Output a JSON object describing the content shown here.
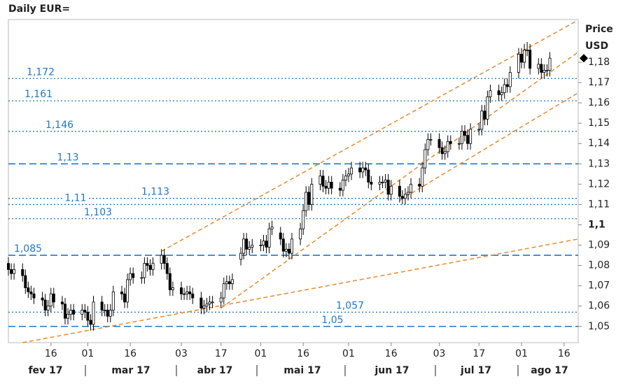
{
  "chart_data": {
    "type": "candlestick",
    "title": "Daily EUR=",
    "y_label_lines": [
      "Price",
      "USD"
    ],
    "x": [
      "2017-02-01",
      "2017-02-02",
      "2017-02-03",
      "2017-02-06",
      "2017-02-07",
      "2017-02-08",
      "2017-02-09",
      "2017-02-10",
      "2017-02-13",
      "2017-02-14",
      "2017-02-15",
      "2017-02-16",
      "2017-02-17",
      "2017-02-20",
      "2017-02-21",
      "2017-02-22",
      "2017-02-23",
      "2017-02-24",
      "2017-02-27",
      "2017-02-28",
      "2017-03-01",
      "2017-03-02",
      "2017-03-03",
      "2017-03-06",
      "2017-03-07",
      "2017-03-08",
      "2017-03-09",
      "2017-03-10",
      "2017-03-13",
      "2017-03-14",
      "2017-03-15",
      "2017-03-16",
      "2017-03-17",
      "2017-03-20",
      "2017-03-21",
      "2017-03-22",
      "2017-03-23",
      "2017-03-24",
      "2017-03-27",
      "2017-03-28",
      "2017-03-29",
      "2017-03-30",
      "2017-03-31",
      "2017-04-03",
      "2017-04-04",
      "2017-04-05",
      "2017-04-06",
      "2017-04-07",
      "2017-04-10",
      "2017-04-11",
      "2017-04-12",
      "2017-04-13",
      "2017-04-14",
      "2017-04-17",
      "2017-04-18",
      "2017-04-19",
      "2017-04-20",
      "2017-04-21",
      "2017-04-24",
      "2017-04-25",
      "2017-04-26",
      "2017-04-27",
      "2017-04-28",
      "2017-05-01",
      "2017-05-02",
      "2017-05-03",
      "2017-05-04",
      "2017-05-05",
      "2017-05-08",
      "2017-05-09",
      "2017-05-10",
      "2017-05-11",
      "2017-05-12",
      "2017-05-15",
      "2017-05-16",
      "2017-05-17",
      "2017-05-18",
      "2017-05-19",
      "2017-05-22",
      "2017-05-23",
      "2017-05-24",
      "2017-05-25",
      "2017-05-26",
      "2017-05-29",
      "2017-05-30",
      "2017-05-31",
      "2017-06-01",
      "2017-06-02",
      "2017-06-05",
      "2017-06-06",
      "2017-06-07",
      "2017-06-08",
      "2017-06-09",
      "2017-06-12",
      "2017-06-13",
      "2017-06-14",
      "2017-06-15",
      "2017-06-16",
      "2017-06-19",
      "2017-06-20",
      "2017-06-21",
      "2017-06-22",
      "2017-06-23",
      "2017-06-26",
      "2017-06-27",
      "2017-06-28",
      "2017-06-29",
      "2017-06-30",
      "2017-07-03",
      "2017-07-04",
      "2017-07-05",
      "2017-07-06",
      "2017-07-07",
      "2017-07-10",
      "2017-07-11",
      "2017-07-12",
      "2017-07-13",
      "2017-07-14",
      "2017-07-17",
      "2017-07-18",
      "2017-07-19",
      "2017-07-20",
      "2017-07-21",
      "2017-07-24",
      "2017-07-25",
      "2017-07-26",
      "2017-07-27",
      "2017-07-28",
      "2017-07-31",
      "2017-08-01",
      "2017-08-02",
      "2017-08-03",
      "2017-08-04",
      "2017-08-07",
      "2017-08-08",
      "2017-08-09",
      "2017-08-10",
      "2017-08-11"
    ],
    "open": [
      1.081,
      1.078,
      1.076,
      1.078,
      1.075,
      1.069,
      1.067,
      1.066,
      1.064,
      1.063,
      1.058,
      1.06,
      1.066,
      1.062,
      1.061,
      1.054,
      1.056,
      1.058,
      1.056,
      1.058,
      1.057,
      1.053,
      1.051,
      1.062,
      1.058,
      1.058,
      1.055,
      1.058,
      1.067,
      1.066,
      1.062,
      1.073,
      1.076,
      1.074,
      1.074,
      1.081,
      1.08,
      1.078,
      1.081,
      1.085,
      1.081,
      1.076,
      1.068,
      1.069,
      1.066,
      1.066,
      1.067,
      1.066,
      1.064,
      1.059,
      1.06,
      1.061,
      1.062,
      1.062,
      1.064,
      1.071,
      1.072,
      1.071,
      1.083,
      1.086,
      1.093,
      1.088,
      1.089,
      1.09,
      1.09,
      1.092,
      1.089,
      1.098,
      1.096,
      1.093,
      1.087,
      1.088,
      1.086,
      1.093,
      1.098,
      1.107,
      1.116,
      1.11,
      1.12,
      1.124,
      1.119,
      1.118,
      1.121,
      1.118,
      1.117,
      1.122,
      1.124,
      1.125,
      1.128,
      1.126,
      1.128,
      1.127,
      1.121,
      1.12,
      1.121,
      1.121,
      1.122,
      1.115,
      1.119,
      1.114,
      1.113,
      1.115,
      1.116,
      1.12,
      1.119,
      1.128,
      1.137,
      1.142,
      1.142,
      1.138,
      1.135,
      1.136,
      1.141,
      1.14,
      1.14,
      1.146,
      1.144,
      1.14,
      1.147,
      1.147,
      1.156,
      1.152,
      1.163,
      1.166,
      1.164,
      1.165,
      1.169,
      1.168,
      1.175,
      1.184,
      1.18,
      1.186,
      1.186,
      1.177,
      1.179,
      1.175,
      1.176,
      1.176
    ],
    "high": [
      1.084,
      1.081,
      1.081,
      1.081,
      1.078,
      1.072,
      1.07,
      1.069,
      1.067,
      1.066,
      1.063,
      1.069,
      1.069,
      1.065,
      1.064,
      1.059,
      1.061,
      1.061,
      1.061,
      1.061,
      1.06,
      1.056,
      1.065,
      1.065,
      1.061,
      1.061,
      1.061,
      1.07,
      1.07,
      1.069,
      1.076,
      1.079,
      1.079,
      1.077,
      1.084,
      1.084,
      1.083,
      1.084,
      1.088,
      1.088,
      1.084,
      1.079,
      1.072,
      1.072,
      1.069,
      1.07,
      1.07,
      1.069,
      1.067,
      1.063,
      1.064,
      1.065,
      1.065,
      1.067,
      1.074,
      1.075,
      1.075,
      1.076,
      1.089,
      1.096,
      1.096,
      1.092,
      1.093,
      1.093,
      1.095,
      1.095,
      1.101,
      1.102,
      1.099,
      1.096,
      1.091,
      1.091,
      1.096,
      1.101,
      1.11,
      1.119,
      1.119,
      1.123,
      1.127,
      1.127,
      1.122,
      1.124,
      1.124,
      1.121,
      1.125,
      1.127,
      1.128,
      1.131,
      1.131,
      1.131,
      1.131,
      1.13,
      1.124,
      1.124,
      1.124,
      1.125,
      1.125,
      1.122,
      1.122,
      1.117,
      1.118,
      1.119,
      1.123,
      1.123,
      1.131,
      1.14,
      1.145,
      1.145,
      1.145,
      1.141,
      1.139,
      1.144,
      1.144,
      1.143,
      1.149,
      1.149,
      1.147,
      1.15,
      1.15,
      1.159,
      1.159,
      1.166,
      1.169,
      1.169,
      1.168,
      1.172,
      1.172,
      1.178,
      1.187,
      1.187,
      1.189,
      1.19,
      1.189,
      1.182,
      1.182,
      1.179,
      1.179,
      1.185
    ],
    "low": [
      1.075,
      1.073,
      1.073,
      1.072,
      1.066,
      1.064,
      1.063,
      1.061,
      1.06,
      1.055,
      1.055,
      1.057,
      1.059,
      1.058,
      1.051,
      1.051,
      1.053,
      1.053,
      1.053,
      1.054,
      1.05,
      1.048,
      1.048,
      1.055,
      1.055,
      1.052,
      1.052,
      1.055,
      1.063,
      1.059,
      1.059,
      1.07,
      1.071,
      1.071,
      1.071,
      1.077,
      1.075,
      1.075,
      1.078,
      1.078,
      1.073,
      1.065,
      1.065,
      1.063,
      1.063,
      1.063,
      1.063,
      1.061,
      1.056,
      1.056,
      1.057,
      1.058,
      1.059,
      1.059,
      1.061,
      1.068,
      1.068,
      1.068,
      1.08,
      1.083,
      1.085,
      1.085,
      1.086,
      1.087,
      1.087,
      1.086,
      1.086,
      1.095,
      1.09,
      1.084,
      1.084,
      1.083,
      1.083,
      1.09,
      1.095,
      1.104,
      1.107,
      1.107,
      1.117,
      1.116,
      1.115,
      1.115,
      1.115,
      1.114,
      1.114,
      1.119,
      1.121,
      1.122,
      1.123,
      1.123,
      1.124,
      1.118,
      1.117,
      1.117,
      1.118,
      1.118,
      1.112,
      1.112,
      1.111,
      1.11,
      1.11,
      1.112,
      1.113,
      1.116,
      1.116,
      1.125,
      1.134,
      1.139,
      1.135,
      1.132,
      1.132,
      1.133,
      1.137,
      1.137,
      1.137,
      1.141,
      1.137,
      1.137,
      1.144,
      1.144,
      1.149,
      1.149,
      1.16,
      1.161,
      1.161,
      1.162,
      1.165,
      1.165,
      1.172,
      1.177,
      1.177,
      1.183,
      1.174,
      1.174,
      1.172,
      1.172,
      1.173,
      1.173
    ],
    "close": [
      1.078,
      1.076,
      1.078,
      1.075,
      1.069,
      1.067,
      1.066,
      1.064,
      1.063,
      1.058,
      1.06,
      1.066,
      1.062,
      1.061,
      1.054,
      1.056,
      1.058,
      1.056,
      1.058,
      1.057,
      1.053,
      1.051,
      1.062,
      1.058,
      1.058,
      1.055,
      1.058,
      1.067,
      1.066,
      1.062,
      1.073,
      1.076,
      1.074,
      1.074,
      1.081,
      1.08,
      1.078,
      1.081,
      1.085,
      1.081,
      1.076,
      1.068,
      1.069,
      1.066,
      1.066,
      1.067,
      1.066,
      1.064,
      1.059,
      1.06,
      1.061,
      1.062,
      1.062,
      1.064,
      1.071,
      1.072,
      1.071,
      1.073,
      1.086,
      1.093,
      1.088,
      1.089,
      1.09,
      1.09,
      1.092,
      1.089,
      1.098,
      1.099,
      1.093,
      1.087,
      1.088,
      1.086,
      1.093,
      1.098,
      1.107,
      1.116,
      1.11,
      1.12,
      1.124,
      1.119,
      1.118,
      1.121,
      1.118,
      1.117,
      1.122,
      1.124,
      1.125,
      1.128,
      1.126,
      1.128,
      1.127,
      1.121,
      1.12,
      1.121,
      1.121,
      1.122,
      1.115,
      1.119,
      1.114,
      1.113,
      1.115,
      1.116,
      1.12,
      1.119,
      1.128,
      1.137,
      1.142,
      1.142,
      1.138,
      1.135,
      1.136,
      1.141,
      1.14,
      1.14,
      1.146,
      1.144,
      1.14,
      1.147,
      1.147,
      1.156,
      1.152,
      1.163,
      1.166,
      1.164,
      1.165,
      1.169,
      1.168,
      1.175,
      1.184,
      1.18,
      1.186,
      1.186,
      1.177,
      1.179,
      1.175,
      1.176,
      1.176,
      1.182
    ],
    "up_color": "#ffffff",
    "down_color": "#000000",
    "xlim": [
      "2017-02-01",
      "2017-08-21"
    ],
    "xticks": [
      {
        "value": "2017-02-16",
        "label": "16"
      },
      {
        "value": "2017-03-01",
        "label": "01"
      },
      {
        "value": "2017-03-16",
        "label": "16"
      },
      {
        "value": "2017-04-03",
        "label": "03"
      },
      {
        "value": "2017-04-17",
        "label": "17"
      },
      {
        "value": "2017-05-01",
        "label": "01"
      },
      {
        "value": "2017-05-16",
        "label": "16"
      },
      {
        "value": "2017-06-01",
        "label": "01"
      },
      {
        "value": "2017-06-16",
        "label": "16"
      },
      {
        "value": "2017-07-03",
        "label": "03"
      },
      {
        "value": "2017-07-17",
        "label": "17"
      },
      {
        "value": "2017-08-01",
        "label": "01"
      },
      {
        "value": "2017-08-16",
        "label": "16"
      }
    ],
    "month_labels": [
      "fev 17",
      "mar 17",
      "abr 17",
      "mai 17",
      "jun 17",
      "jul 17",
      "ago 17"
    ],
    "ylim": [
      1.042,
      1.201
    ],
    "yticks": [
      {
        "value": 1.05,
        "label": "1,05"
      },
      {
        "value": 1.06,
        "label": "1,06"
      },
      {
        "value": 1.07,
        "label": "1,07"
      },
      {
        "value": 1.08,
        "label": "1,08"
      },
      {
        "value": 1.09,
        "label": "1,09"
      },
      {
        "value": 1.1,
        "label": "1,1"
      },
      {
        "value": 1.11,
        "label": "1,11"
      },
      {
        "value": 1.12,
        "label": "1,12"
      },
      {
        "value": 1.13,
        "label": "1,13"
      },
      {
        "value": 1.14,
        "label": "1,14"
      },
      {
        "value": 1.15,
        "label": "1,15"
      },
      {
        "value": 1.16,
        "label": "1,16"
      },
      {
        "value": 1.17,
        "label": "1,17"
      },
      {
        "value": 1.18,
        "label": "1,18"
      }
    ],
    "levels": [
      {
        "value": 1.172,
        "label": "1,172",
        "style": "dotted"
      },
      {
        "value": 1.161,
        "label": "1,161",
        "style": "dotted"
      },
      {
        "value": 1.146,
        "label": "1,146",
        "style": "dotted"
      },
      {
        "value": 1.13,
        "label": "1,13",
        "style": "dashed"
      },
      {
        "value": 1.113,
        "label": "1,113",
        "style": "dotted"
      },
      {
        "value": 1.11,
        "label": "1,11",
        "style": "dotted"
      },
      {
        "value": 1.103,
        "label": "1,103",
        "style": "dotted"
      },
      {
        "value": 1.085,
        "label": "1,085",
        "style": "dashed"
      },
      {
        "value": 1.057,
        "label": "1,057",
        "style": "dotted"
      },
      {
        "value": 1.05,
        "label": "1,05",
        "style": "dashed"
      }
    ],
    "level_color": "#1f78c8",
    "trendlines": [
      {
        "x": [
          "2017-03-27",
          "2017-08-20"
        ],
        "y": [
          1.087,
          1.2
        ]
      },
      {
        "x": [
          "2017-04-17",
          "2017-08-21"
        ],
        "y": [
          1.059,
          1.185
        ]
      },
      {
        "x": [
          "2017-06-19",
          "2017-08-21"
        ],
        "y": [
          1.112,
          1.165
        ]
      },
      {
        "x": [
          "2017-02-06",
          "2017-08-21"
        ],
        "y": [
          1.042,
          1.093
        ]
      }
    ],
    "trend_color": "#e8892b"
  }
}
